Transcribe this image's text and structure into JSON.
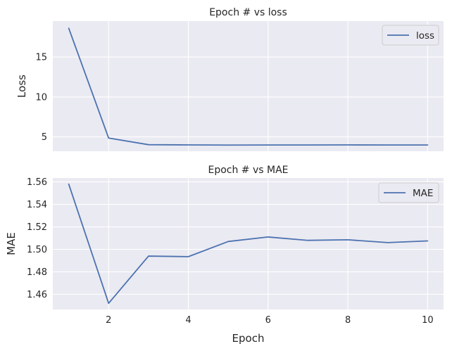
{
  "colors": {
    "background": "#ffffff",
    "axes_bg": "#eaeaf2",
    "grid": "#ffffff",
    "line": "#4c72b0",
    "text": "#262626",
    "legend_border": "#cccccc"
  },
  "chart_data": [
    {
      "type": "line",
      "title": "Epoch # vs loss",
      "xlabel": "",
      "ylabel": "Loss",
      "x": [
        1,
        2,
        3,
        4,
        5,
        6,
        7,
        8,
        9,
        10
      ],
      "series": [
        {
          "name": "loss",
          "values": [
            18.6,
            4.85,
            4.02,
            3.99,
            3.97,
            3.98,
            3.98,
            3.99,
            3.98,
            3.98
          ]
        }
      ],
      "xlim": [
        0.6,
        10.4
      ],
      "ylim": [
        3.2,
        19.5
      ],
      "xticks": [
        2,
        4,
        6,
        8,
        10
      ],
      "xtick_labels_shown": false,
      "yticks": [
        5,
        10,
        15
      ],
      "ytick_labels": [
        "5",
        "10",
        "15"
      ],
      "grid": true,
      "legend": "top-right"
    },
    {
      "type": "line",
      "title": "Epoch # vs MAE",
      "xlabel": "Epoch",
      "ylabel": "MAE",
      "x": [
        1,
        2,
        3,
        4,
        5,
        6,
        7,
        8,
        9,
        10
      ],
      "series": [
        {
          "name": "MAE",
          "values": [
            1.558,
            1.452,
            1.494,
            1.4935,
            1.507,
            1.511,
            1.508,
            1.5085,
            1.506,
            1.5075
          ]
        }
      ],
      "xlim": [
        0.6,
        10.4
      ],
      "ylim": [
        1.4465,
        1.5635
      ],
      "xticks": [
        2,
        4,
        6,
        8,
        10
      ],
      "xtick_labels": [
        "2",
        "4",
        "6",
        "8",
        "10"
      ],
      "xtick_labels_shown": true,
      "yticks": [
        1.46,
        1.48,
        1.5,
        1.52,
        1.54,
        1.56
      ],
      "ytick_labels": [
        "1.46",
        "1.48",
        "1.50",
        "1.52",
        "1.54",
        "1.56"
      ],
      "grid": true,
      "legend": "top-right"
    }
  ]
}
